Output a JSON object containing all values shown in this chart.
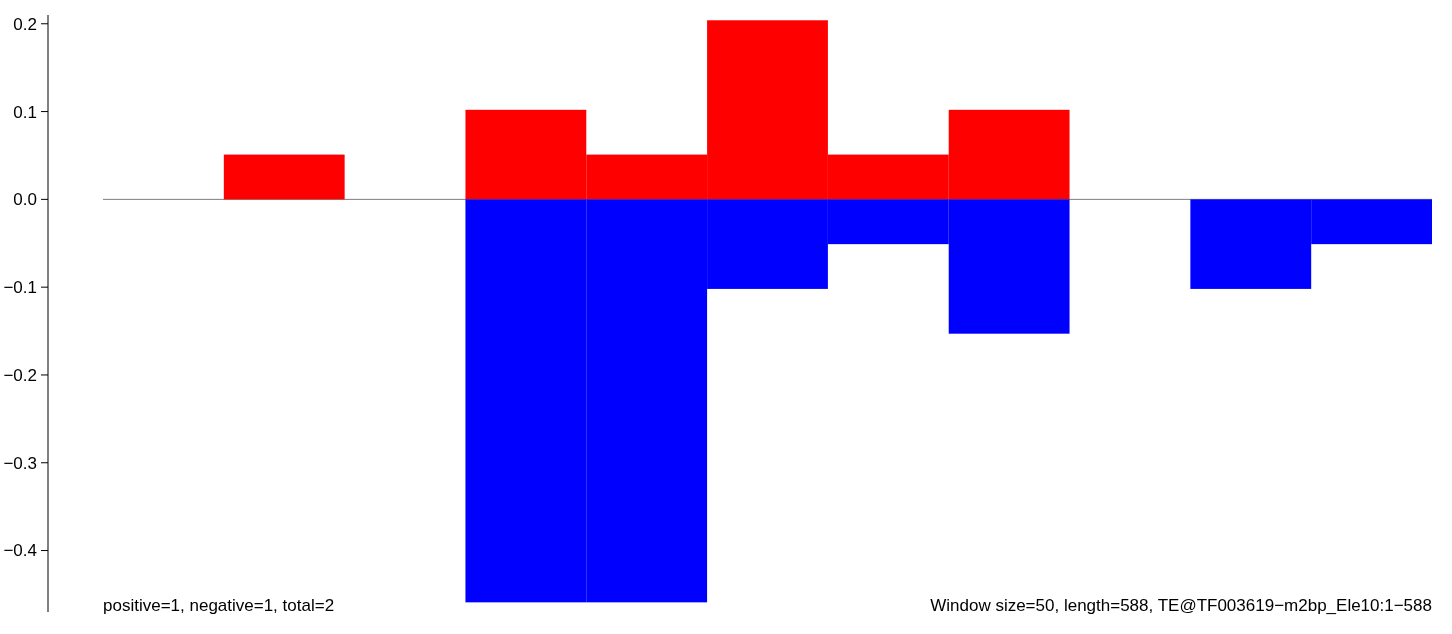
{
  "chart_data": {
    "type": "bar",
    "categories": [
      null,
      null,
      null,
      null,
      null,
      null,
      null,
      null,
      null,
      null,
      null
    ],
    "series": [
      {
        "color": "#ff0000",
        "values": [
          0,
          0.051,
          0,
          0.102,
          0.051,
          0.204,
          0.051,
          0.102,
          0,
          0,
          0
        ]
      },
      {
        "color": "#0000ff",
        "values": [
          0,
          0,
          0,
          -0.459,
          -0.459,
          -0.102,
          -0.051,
          -0.153,
          0,
          -0.102,
          -0.051
        ]
      }
    ],
    "stacked": true,
    "grid": false,
    "ylim": [
      -0.47,
      0.21
    ],
    "yticks": [
      {
        "value": -0.4,
        "label": "−0.4"
      },
      {
        "value": -0.3,
        "label": "−0.3"
      },
      {
        "value": -0.2,
        "label": "−0.2"
      },
      {
        "value": -0.1,
        "label": "−0.1"
      },
      {
        "value": 0,
        "label": "0.0"
      },
      {
        "value": 0.1,
        "label": "0.1"
      },
      {
        "value": 0.2,
        "label": "0.2"
      }
    ],
    "ref_lines": [
      {
        "axis": "y",
        "value": 0,
        "color": "#808080"
      }
    ],
    "annotations": [
      "positive=1, negative=1, total=2",
      "Window size=50, length=588, TE@TF003619−m2bp_Ele10:1−588"
    ]
  }
}
